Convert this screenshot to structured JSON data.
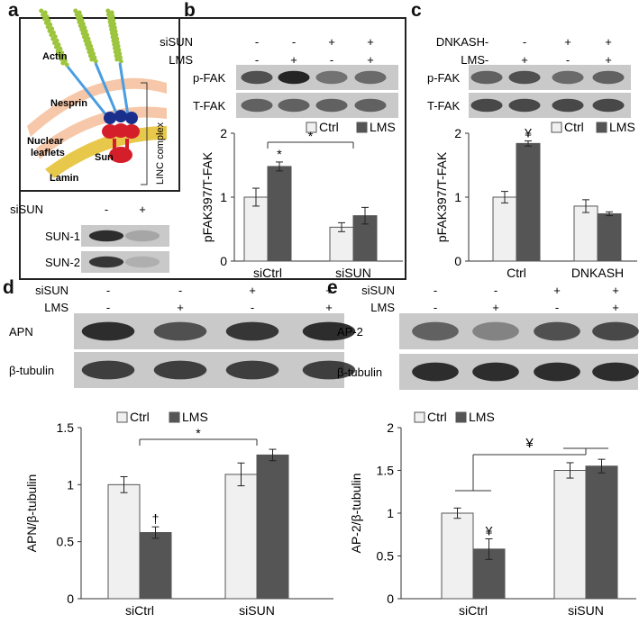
{
  "panel_letters": {
    "a": "a",
    "b": "b",
    "c": "c",
    "d": "d",
    "e": "e"
  },
  "colors": {
    "ctrl_fill": "#f0f0f0",
    "lms_fill": "#555555",
    "blot_bg": "#c9c9c9",
    "actin": "#9cc43c",
    "nesprin": "#4a9de0",
    "sun": "#d41f2b",
    "lamin": "#e8c84a"
  },
  "panel_a": {
    "diagram_labels": {
      "actin": "Actin",
      "nesprin": "Nesprin",
      "nuclear": "Nuclear",
      "leaflets": "leaflets",
      "sun": "Sun",
      "lamin": "Lamin",
      "linc": "LINC complex"
    },
    "blot": {
      "row_label": "siSUN",
      "signs": [
        "-",
        "+"
      ],
      "bands": [
        "SUN-1",
        "SUN-2"
      ]
    }
  },
  "panel_b": {
    "blot": {
      "rows": [
        {
          "label": "siSUN",
          "signs": [
            "-",
            "-",
            "+",
            "+"
          ]
        },
        {
          "label": "LMS",
          "signs": [
            "-",
            "+",
            "-",
            "+"
          ]
        }
      ],
      "bands": [
        "p-FAK",
        "T-FAK"
      ]
    }
  },
  "panel_c": {
    "blot": {
      "rows": [
        {
          "label": "DNKASH",
          "signs": [
            "-",
            "-",
            "+",
            "+"
          ]
        },
        {
          "label": "LMS",
          "signs": [
            "-",
            "+",
            "-",
            "+"
          ]
        }
      ],
      "bands": [
        "p-FAK",
        "T-FAK"
      ]
    }
  },
  "panel_d": {
    "blot": {
      "rows": [
        {
          "label": "siSUN",
          "signs": [
            "-",
            "-",
            "+",
            "+"
          ]
        },
        {
          "label": "LMS",
          "signs": [
            "-",
            "+",
            "-",
            "+"
          ]
        }
      ],
      "bands": [
        "APN",
        "β-tubulin"
      ]
    }
  },
  "panel_e": {
    "blot": {
      "rows": [
        {
          "label": "siSUN",
          "signs": [
            "-",
            "-",
            "+",
            "+"
          ]
        },
        {
          "label": "LMS",
          "signs": [
            "-",
            "+",
            "-",
            "+"
          ]
        }
      ],
      "bands": [
        "AP-2",
        "β-tubulin"
      ]
    }
  },
  "chart_data": [
    {
      "panel": "b",
      "type": "bar",
      "categories": [
        "siCtrl",
        "siSUN"
      ],
      "series": [
        {
          "name": "Ctrl",
          "values": [
            1.0,
            0.53
          ],
          "errors": [
            0.14,
            0.07
          ]
        },
        {
          "name": "LMS",
          "values": [
            1.48,
            0.71
          ],
          "errors": [
            0.07,
            0.13
          ]
        }
      ],
      "ylabel": "pFAK397/T-FAK",
      "ylim": [
        0,
        2
      ],
      "yticks": [
        "0",
        "1",
        "2"
      ],
      "annotations": [
        {
          "text": "*",
          "over": "siCtrl-LMS"
        },
        {
          "text": "*",
          "over": "bracket"
        }
      ],
      "legend": "top"
    },
    {
      "panel": "c",
      "type": "bar",
      "categories": [
        "Ctrl",
        "DNKASH"
      ],
      "series": [
        {
          "name": "Ctrl",
          "values": [
            1.0,
            0.86
          ],
          "errors": [
            0.09,
            0.1
          ]
        },
        {
          "name": "LMS",
          "values": [
            1.84,
            0.74
          ],
          "errors": [
            0.04,
            0.03
          ]
        }
      ],
      "ylabel": "pFAK397/T-FAK",
      "ylim": [
        0,
        2
      ],
      "yticks": [
        "0",
        "1",
        "2"
      ],
      "annotations": [
        {
          "text": "¥",
          "over": "Ctrl-LMS"
        }
      ],
      "legend": "top"
    },
    {
      "panel": "d",
      "type": "bar",
      "categories": [
        "siCtrl",
        "siSUN"
      ],
      "series": [
        {
          "name": "Ctrl",
          "values": [
            1.0,
            1.09
          ],
          "errors": [
            0.07,
            0.1
          ]
        },
        {
          "name": "LMS",
          "values": [
            0.58,
            1.26
          ],
          "errors": [
            0.05,
            0.05
          ]
        }
      ],
      "ylabel": "APN/β-tubulin",
      "ylim": [
        0,
        1.5
      ],
      "yticks": [
        "0",
        "0.5",
        "1",
        "1.5"
      ],
      "annotations": [
        {
          "text": "†",
          "over": "siCtrl-LMS"
        },
        {
          "text": "*",
          "over": "bracket"
        }
      ],
      "legend": "top"
    },
    {
      "panel": "e",
      "type": "bar",
      "categories": [
        "siCtrl",
        "siSUN"
      ],
      "series": [
        {
          "name": "Ctrl",
          "values": [
            1.0,
            1.5
          ],
          "errors": [
            0.06,
            0.09
          ]
        },
        {
          "name": "LMS",
          "values": [
            0.58,
            1.55
          ],
          "errors": [
            0.12,
            0.08
          ]
        }
      ],
      "ylabel": "AP-2/β-tubulin",
      "ylim": [
        0,
        2
      ],
      "yticks": [
        "0",
        "0.5",
        "1",
        "1.5",
        "2"
      ],
      "annotations": [
        {
          "text": "¥",
          "over": "siCtrl-LMS"
        },
        {
          "text": "¥",
          "over": "bracket"
        }
      ],
      "legend": "top"
    }
  ]
}
